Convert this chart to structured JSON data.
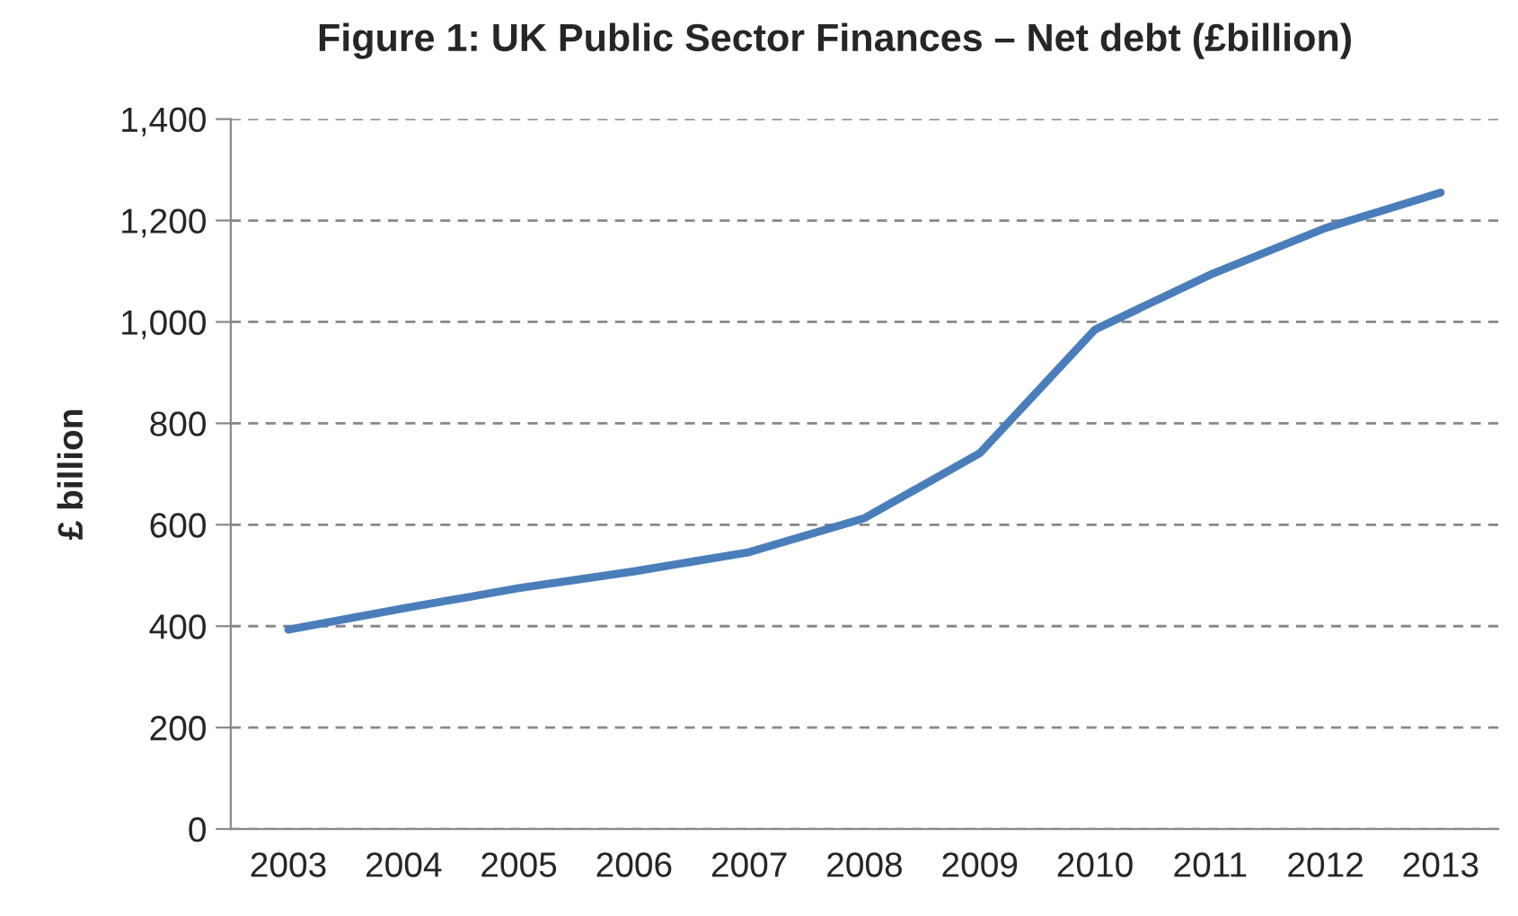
{
  "chart_data": {
    "type": "line",
    "title": "Figure 1: UK Public Sector Finances – Net debt (£billion)",
    "ylabel": "£ billion",
    "categories": [
      "2003",
      "2004",
      "2005",
      "2006",
      "2007",
      "2008",
      "2009",
      "2010",
      "2011",
      "2012",
      "2013"
    ],
    "series": [
      {
        "color": "#4a7ebb",
        "values": [
          393,
          435,
          475,
          508,
          546,
          613,
          741,
          985,
          1093,
          1185,
          1255
        ]
      }
    ],
    "ylim": [
      0,
      1400
    ],
    "yticks": [
      {
        "value": 0,
        "label": "0"
      },
      {
        "value": 200,
        "label": "200"
      },
      {
        "value": 400,
        "label": "400"
      },
      {
        "value": 600,
        "label": "600"
      },
      {
        "value": 800,
        "label": "800"
      },
      {
        "value": 1000,
        "label": "1,000"
      },
      {
        "value": 1200,
        "label": "1,200"
      },
      {
        "value": 1400,
        "label": "1,400"
      }
    ],
    "grid": "y",
    "marker": "none",
    "line_style": "solid"
  }
}
